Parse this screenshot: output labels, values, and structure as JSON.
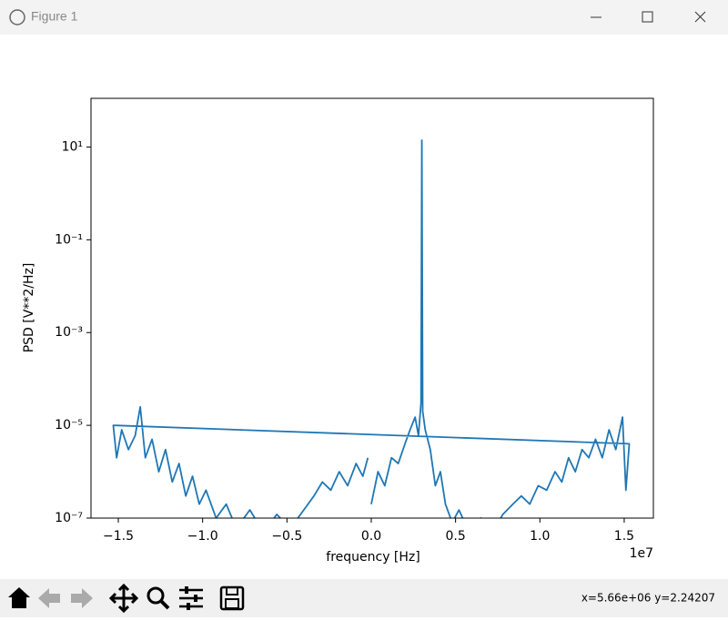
{
  "window": {
    "title": "Figure 1",
    "status": "x=5.66e+06 y=2.24207"
  },
  "chart_data": {
    "type": "line",
    "xlabel": "frequency [Hz]",
    "ylabel": "PSD [V**2/Hz]",
    "x_offset_label": "1e7",
    "color": "#1f77b4",
    "yscale": "log",
    "xlim": [
      -16620000,
      16730000
    ],
    "ylim": [
      1e-07,
      112
    ],
    "xticks": [
      {
        "value": -15000000,
        "label": "−1.5"
      },
      {
        "value": -10000000,
        "label": "−1.0"
      },
      {
        "value": -5000000,
        "label": "−0.5"
      },
      {
        "value": 0,
        "label": "0.0"
      },
      {
        "value": 5000000,
        "label": "0.5"
      },
      {
        "value": 10000000,
        "label": "1.0"
      },
      {
        "value": 15000000,
        "label": "1.5"
      }
    ],
    "yticks": [
      {
        "value": 10,
        "label": "10¹"
      },
      {
        "value": 0.1,
        "label": "10⁻¹"
      },
      {
        "value": 0.001,
        "label": "10⁻³"
      },
      {
        "value": 1e-05,
        "label": "10⁻⁵"
      },
      {
        "value": 1e-07,
        "label": "10⁻⁷"
      }
    ],
    "x": [
      0,
      400000,
      800000,
      1200000,
      1600000,
      2000000,
      2300000,
      2600000,
      2800000,
      2950000,
      3000000,
      3050000,
      3200000,
      3500000,
      3800000,
      4100000,
      4400000,
      4800000,
      5200000,
      5800000,
      6500000,
      7200000,
      7800000,
      8400000,
      8900000,
      9400000,
      9900000,
      10400000,
      10900000,
      11300000,
      11700000,
      12100000,
      12500000,
      12900000,
      13300000,
      13700000,
      14100000,
      14500000,
      14900000,
      15100000,
      15300000,
      -15300000,
      -15100000,
      -14800000,
      -14400000,
      -14000000,
      -13700000,
      -13400000,
      -13000000,
      -12600000,
      -12200000,
      -11800000,
      -11400000,
      -11000000,
      -10600000,
      -10200000,
      -9800000,
      -9200000,
      -8600000,
      -8000000,
      -7200000,
      -6400000,
      -5600000,
      -4800000,
      -4000000,
      -3400000,
      -2900000,
      -2400000,
      -1900000,
      -1400000,
      -900000,
      -500000,
      -200000
    ],
    "values": [
      2e-07,
      1e-06,
      5e-07,
      2e-06,
      1.5e-06,
      4e-06,
      8e-06,
      1.5e-05,
      6e-06,
      3e-05,
      14,
      2e-05,
      8e-06,
      3e-06,
      5e-07,
      1e-06,
      2e-07,
      8e-08,
      1.5e-07,
      5e-08,
      1e-07,
      5e-08,
      1.2e-07,
      2e-07,
      3e-07,
      2e-07,
      5e-07,
      4e-07,
      1e-06,
      6e-07,
      2e-06,
      1e-06,
      3e-06,
      2e-06,
      5e-06,
      2e-06,
      8e-06,
      3e-06,
      1.5e-05,
      4e-07,
      4e-06,
      1e-05,
      2e-06,
      8e-06,
      3e-06,
      6e-06,
      2.5e-05,
      2e-06,
      5e-06,
      1e-06,
      3e-06,
      6e-07,
      1.5e-06,
      3e-07,
      8e-07,
      2e-07,
      4e-07,
      1e-07,
      2e-07,
      6e-08,
      1.5e-07,
      5e-08,
      1.2e-07,
      6e-08,
      1.5e-07,
      3e-07,
      6e-07,
      4e-07,
      1e-06,
      5e-07,
      1.5e-06,
      8e-07,
      2e-06
    ]
  }
}
